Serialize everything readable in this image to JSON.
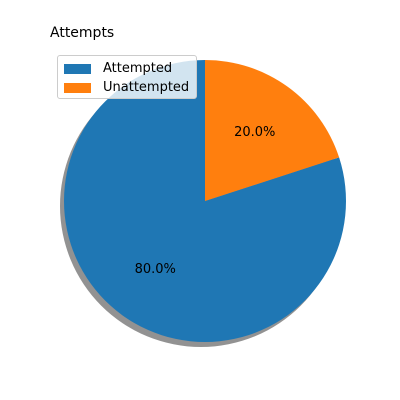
{
  "chart_data": {
    "type": "pie",
    "title": "Attempts",
    "labels": [
      "Attempted",
      "Unattempted"
    ],
    "values": [
      80.0,
      20.0
    ],
    "slice_labels": [
      "80.0%",
      "20.0%"
    ],
    "colors": [
      "#1f77b4",
      "#ff7f0e"
    ],
    "start_angle_deg": 90,
    "direction": "counterclockwise",
    "shadow": true,
    "legend_position": "upper-left"
  }
}
